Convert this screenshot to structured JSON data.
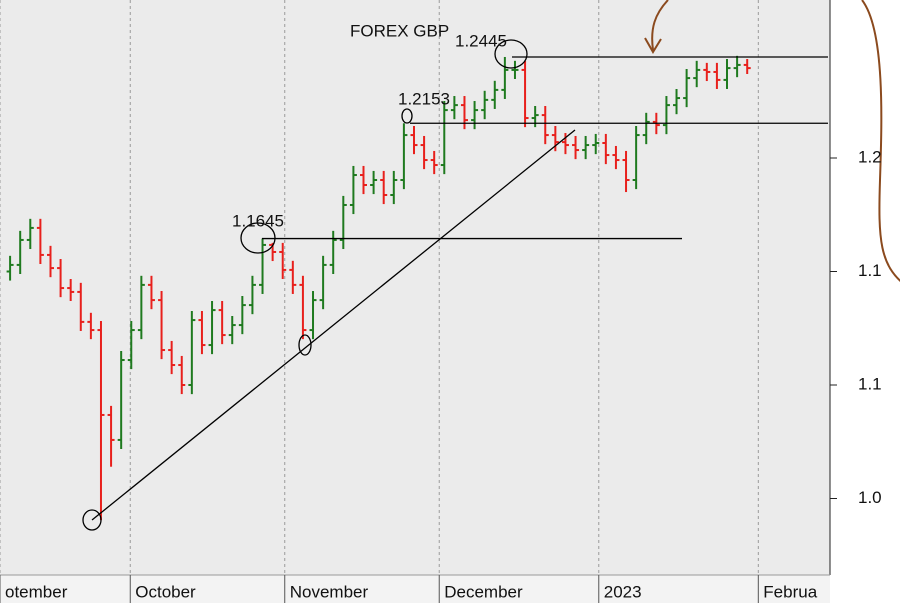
{
  "chart_data": {
    "type": "ohlc",
    "title": "FOREX GBP",
    "up_color": "#1f7a1f",
    "down_color": "#e8201c",
    "x": [
      0,
      1,
      2,
      3,
      4,
      5,
      6,
      7,
      8,
      9,
      10,
      11,
      12,
      13,
      14,
      15,
      16,
      17,
      18,
      19,
      20,
      21,
      22,
      23,
      24,
      25,
      26,
      27,
      28,
      29,
      30,
      31,
      32,
      33,
      34,
      35,
      36,
      37,
      38,
      39,
      40,
      41,
      42,
      43,
      44,
      45,
      46,
      47,
      48,
      49,
      50,
      51,
      52,
      53,
      54,
      55,
      56,
      57,
      58,
      59,
      60,
      61,
      62,
      63,
      64,
      65,
      66,
      67,
      68,
      69,
      70,
      71,
      72,
      73
    ],
    "open": [
      1.15,
      1.1529,
      1.1639,
      1.1692,
      1.1573,
      1.1515,
      1.1427,
      1.141,
      1.1278,
      1.1242,
      1.0868,
      1.0758,
      1.111,
      1.1242,
      1.1441,
      1.1374,
      1.1154,
      1.1088,
      1.1,
      1.1286,
      1.1176,
      1.133,
      1.122,
      1.1264,
      1.1352,
      1.1441,
      1.1617,
      1.1586,
      1.1507,
      1.1441,
      1.1242,
      1.1374,
      1.1529,
      1.1639,
      1.1793,
      1.1925,
      1.1881,
      1.1903,
      1.1837,
      1.1903,
      1.2101,
      1.2057,
      1.1991,
      1.1969,
      1.2211,
      1.2233,
      1.2167,
      1.2211,
      1.2256,
      1.23,
      1.2388,
      1.2388,
      1.2176,
      1.2189,
      1.2101,
      1.207,
      1.2057,
      1.2035,
      1.2057,
      1.2066,
      1.2013,
      1.1991,
      1.1903,
      1.2101,
      1.2159,
      1.2145,
      1.2233,
      1.2264,
      1.2352,
      1.2388,
      1.2379,
      1.2344,
      1.2396,
      1.241
    ],
    "high": [
      1.1569,
      1.1679,
      1.1732,
      1.1732,
      1.1613,
      1.1555,
      1.1467,
      1.145,
      1.1318,
      1.1282,
      1.0908,
      1.115,
      1.1282,
      1.1481,
      1.1481,
      1.1414,
      1.1194,
      1.1128,
      1.1326,
      1.1326,
      1.137,
      1.137,
      1.1304,
      1.1392,
      1.1481,
      1.1645,
      1.1626,
      1.1626,
      1.1547,
      1.1481,
      1.1414,
      1.1569,
      1.1679,
      1.1833,
      1.1965,
      1.1965,
      1.1943,
      1.1943,
      1.1943,
      1.2153,
      1.2141,
      1.2097,
      1.2031,
      1.2251,
      1.2273,
      1.2273,
      1.2251,
      1.2296,
      1.234,
      1.2445,
      1.2428,
      1.2428,
      1.2229,
      1.2229,
      1.2141,
      1.211,
      1.2097,
      1.2097,
      1.2106,
      1.2106,
      1.2053,
      1.2031,
      1.2141,
      1.2199,
      1.2199,
      1.2273,
      1.2304,
      1.2392,
      1.2428,
      1.2419,
      1.2419,
      1.2436,
      1.245,
      1.2436
    ],
    "low": [
      1.146,
      1.1489,
      1.1599,
      1.1533,
      1.1475,
      1.1387,
      1.137,
      1.1238,
      1.1202,
      1.0405,
      1.064,
      1.0718,
      1.107,
      1.1202,
      1.1334,
      1.1114,
      1.1048,
      1.096,
      1.096,
      1.1136,
      1.1136,
      1.118,
      1.118,
      1.1224,
      1.1312,
      1.1401,
      1.1546,
      1.1467,
      1.1401,
      1.1202,
      1.1202,
      1.1334,
      1.1489,
      1.1599,
      1.1753,
      1.1841,
      1.1841,
      1.1797,
      1.1797,
      1.1863,
      1.2017,
      1.1951,
      1.1929,
      1.1929,
      1.2171,
      1.2127,
      1.2127,
      1.2171,
      1.2216,
      1.226,
      1.2348,
      1.2136,
      1.2136,
      1.2061,
      1.203,
      1.2017,
      1.1995,
      1.1995,
      1.2017,
      1.1973,
      1.1951,
      1.185,
      1.1863,
      1.2061,
      1.2105,
      1.2105,
      1.2193,
      1.2224,
      1.2312,
      1.2339,
      1.2304,
      1.2304,
      1.2356,
      1.237
    ],
    "close": [
      1.1529,
      1.1639,
      1.1692,
      1.1573,
      1.1515,
      1.1427,
      1.141,
      1.1278,
      1.1242,
      1.0868,
      1.0758,
      1.111,
      1.1242,
      1.1441,
      1.1374,
      1.1154,
      1.1088,
      1.1,
      1.1286,
      1.1176,
      1.133,
      1.122,
      1.1264,
      1.1352,
      1.1441,
      1.1617,
      1.1586,
      1.1507,
      1.1441,
      1.1242,
      1.1374,
      1.1529,
      1.1639,
      1.1793,
      1.1925,
      1.1881,
      1.1903,
      1.1837,
      1.1903,
      1.2101,
      1.2057,
      1.1991,
      1.1969,
      1.2211,
      1.2233,
      1.2167,
      1.2211,
      1.2256,
      1.23,
      1.2388,
      1.2388,
      1.2176,
      1.2189,
      1.2101,
      1.207,
      1.2057,
      1.2035,
      1.2057,
      1.2066,
      1.2013,
      1.1991,
      1.1903,
      1.2101,
      1.2159,
      1.2145,
      1.2233,
      1.2264,
      1.2352,
      1.2388,
      1.2379,
      1.2344,
      1.2396,
      1.241,
      1.2396
    ],
    "xlim": [
      -1,
      81.2
    ],
    "xticks": [
      {
        "value": -1,
        "label": "otember"
      },
      {
        "value": 11.9,
        "label": "October"
      },
      {
        "value": 27.2,
        "label": "November"
      },
      {
        "value": 42.5,
        "label": "December"
      },
      {
        "value": 58.3,
        "label": "2023"
      },
      {
        "value": 74.1,
        "label": "Februa"
      }
    ],
    "ylim": [
      1.0163,
      1.2696
    ],
    "yticks": [
      {
        "value": 1.2,
        "label": "1.2"
      },
      {
        "value": 1.15,
        "label": "1.1"
      },
      {
        "value": 1.1,
        "label": "1.1"
      },
      {
        "value": 1.05,
        "label": "1.0"
      }
    ],
    "annotations": [
      {
        "value": 1.2445
      },
      {
        "value": 1.2153
      },
      {
        "value": 1.1645
      }
    ]
  }
}
